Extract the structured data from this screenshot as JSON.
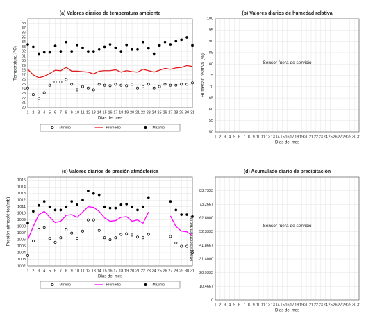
{
  "chart_data": [
    {
      "type": "line",
      "title": "(a) Valores diarios de temperatura ambiente",
      "xlabel": "Días del mes",
      "ylabel": "Temperatura (°C)",
      "x": [
        1,
        2,
        3,
        4,
        5,
        6,
        7,
        8,
        9,
        10,
        11,
        12,
        13,
        14,
        15,
        16,
        17,
        18,
        19,
        20,
        21,
        22,
        23,
        24,
        25,
        26,
        27,
        28,
        29,
        30,
        31
      ],
      "xlim": [
        1,
        31
      ],
      "xticks": [
        1,
        2,
        3,
        4,
        5,
        6,
        7,
        8,
        9,
        10,
        11,
        12,
        13,
        14,
        15,
        16,
        17,
        18,
        19,
        20,
        21,
        22,
        23,
        24,
        25,
        26,
        27,
        28,
        29,
        30,
        31
      ],
      "ylim": [
        20,
        39
      ],
      "yticks": [
        20,
        21,
        22,
        23,
        24,
        25,
        26,
        27,
        28,
        29,
        30,
        31,
        32,
        33,
        34,
        35,
        36,
        37,
        38
      ],
      "grid": true,
      "legend": "bottom",
      "series": [
        {
          "name": "Mínimo",
          "color": "#000000",
          "marker": "o",
          "values": [
            24.2,
            22.8,
            22.0,
            23.2,
            24.8,
            25.5,
            25.5,
            26.0,
            25.0,
            23.8,
            24.5,
            24.2,
            23.8,
            25.0,
            24.8,
            24.7,
            25.0,
            24.8,
            24.7,
            25.0,
            24.2,
            24.5,
            25.0,
            24.2,
            24.5,
            25.0,
            24.8,
            24.8,
            25.0,
            25.0,
            25.3
          ]
        },
        {
          "name": "Promedio",
          "color": "#e41a1c",
          "marker": "line",
          "values": [
            28.2,
            27.0,
            26.4,
            26.7,
            27.3,
            28.0,
            27.9,
            28.6,
            27.8,
            27.8,
            27.7,
            27.6,
            27.2,
            27.8,
            27.9,
            27.9,
            28.1,
            27.6,
            27.9,
            27.7,
            27.6,
            28.2,
            27.9,
            27.6,
            28.0,
            28.4,
            28.2,
            28.5,
            28.6,
            29.0,
            28.8
          ]
        },
        {
          "name": "Máximo",
          "color": "#000000",
          "marker": "dot",
          "values": [
            33.5,
            33.0,
            31.5,
            31.8,
            31.8,
            33.2,
            32.0,
            34.0,
            32.0,
            33.4,
            32.8,
            32.0,
            32.0,
            32.5,
            33.0,
            33.5,
            32.8,
            32.0,
            33.4,
            32.5,
            32.5,
            34.0,
            32.7,
            31.5,
            33.3,
            34.0,
            33.5,
            34.2,
            34.5,
            35.0,
            33.3
          ]
        }
      ]
    },
    {
      "type": "line",
      "title": "(b) Valores diarios de humedad relativa",
      "xlabel": "Días del mes",
      "ylabel": "Humedad relativa (%)",
      "annotation": "Sensor fuera de servicio",
      "xlim": [
        1,
        31
      ],
      "xticks": [
        1,
        2,
        3,
        4,
        5,
        6,
        7,
        8,
        9,
        10,
        11,
        12,
        13,
        14,
        15,
        16,
        17,
        18,
        19,
        20,
        21,
        22,
        23,
        24,
        25,
        26,
        27,
        28,
        29,
        30,
        31
      ],
      "ylim": [
        50,
        100
      ],
      "yticks": [
        50,
        55,
        60,
        65,
        70,
        75,
        80,
        85,
        90,
        95,
        100
      ],
      "grid": true,
      "series": []
    },
    {
      "type": "line",
      "title": "(c) Valores diarios de presión atmósferica",
      "xlabel": "Días del mes",
      "ylabel": "Presión atmosférica(mb)",
      "x": [
        1,
        2,
        3,
        4,
        5,
        6,
        7,
        8,
        9,
        10,
        11,
        12,
        13,
        14,
        15,
        16,
        17,
        18,
        19,
        20,
        21,
        22,
        23,
        24,
        25,
        26,
        27,
        28,
        29,
        30,
        31
      ],
      "xlim": [
        1,
        31
      ],
      "xticks": [
        1,
        2,
        3,
        4,
        5,
        6,
        7,
        8,
        9,
        10,
        11,
        12,
        13,
        14,
        15,
        16,
        17,
        18,
        19,
        20,
        21,
        22,
        23,
        24,
        25,
        26,
        27,
        28,
        29,
        30,
        31
      ],
      "ylim": [
        1002,
        1015.5
      ],
      "yticks": [
        1002,
        1003,
        1004,
        1005,
        1006,
        1007,
        1008,
        1009,
        1010,
        1011,
        1012,
        1013,
        1014,
        1015
      ],
      "grid": true,
      "legend": "bottom",
      "series": [
        {
          "name": "Mínimo",
          "color": "#000000",
          "marker": "o",
          "values": [
            1003.6,
            1005.8,
            1007.5,
            1007.8,
            1006.2,
            1005.6,
            1006.3,
            1007.5,
            1007.0,
            1006.2,
            1007.3,
            1009.0,
            1009.0,
            1007.4,
            1006.3,
            1006.0,
            1006.3,
            1006.8,
            1006.9,
            1006.7,
            1006.4,
            1006.3,
            1006.8,
            null,
            null,
            null,
            1006.5,
            1005.5,
            1005.0,
            1005.0,
            1004.0
          ]
        },
        {
          "name": "Promedio",
          "color": "#ff00ff",
          "marker": "line",
          "values": [
            1006.0,
            1008.0,
            1009.8,
            1010.3,
            1009.4,
            1008.6,
            1008.8,
            1009.7,
            1009.8,
            1009.4,
            1010.2,
            1011.0,
            1010.9,
            1010.3,
            1009.3,
            1008.8,
            1008.9,
            1009.4,
            1009.5,
            1008.8,
            1009.0,
            1008.5,
            1010.2,
            null,
            null,
            null,
            1009.6,
            1008.0,
            1007.3,
            1007.2,
            1006.6
          ]
        },
        {
          "name": "Máximo",
          "color": "#000000",
          "marker": "dot",
          "values": [
            1008.5,
            1010.3,
            1011.2,
            1011.8,
            1011.0,
            1010.5,
            1010.5,
            1011.0,
            1011.8,
            1011.3,
            1012.0,
            1013.4,
            1013.0,
            1012.8,
            1011.0,
            1010.8,
            1010.8,
            1011.3,
            1011.4,
            1011.0,
            1010.5,
            1011.0,
            1012.4,
            null,
            null,
            null,
            1011.8,
            1010.5,
            1009.8,
            1009.8,
            1009.5
          ]
        }
      ]
    },
    {
      "type": "line",
      "title": "(d) Acumulado diario de precipitación",
      "xlabel": "Días del mes",
      "ylabel": "Precipitación (mm/día)",
      "annotation": "Sensor fuera de servicio",
      "xlim": [
        1,
        31
      ],
      "xticks": [
        1,
        2,
        3,
        4,
        5,
        6,
        7,
        8,
        9,
        10,
        11,
        12,
        13,
        14,
        15,
        16,
        17,
        18,
        19,
        20,
        21,
        22,
        23,
        24,
        25,
        26,
        27,
        28,
        29,
        30,
        31
      ],
      "ylim": [
        0,
        94.2
      ],
      "yticks": [
        0,
        10.4667,
        20.9333,
        {
          "value": 31.4,
          "label": "31.4000"
        },
        41.8667,
        52.3333,
        {
          "value": 62.8,
          "label": "62.8000"
        },
        73.2667,
        83.7333
      ],
      "grid": true,
      "series": []
    }
  ]
}
